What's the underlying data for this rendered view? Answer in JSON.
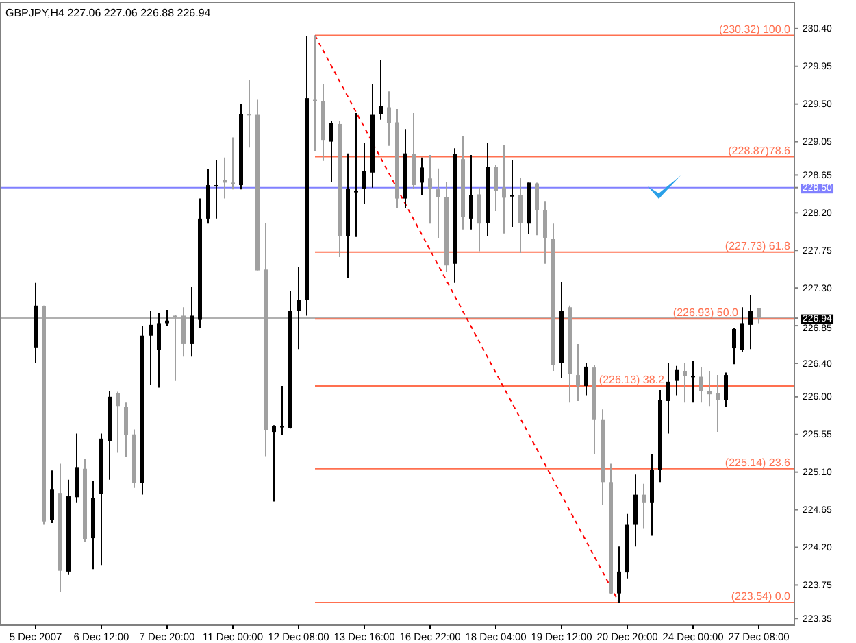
{
  "chart_data": {
    "type": "candlestick",
    "title": "GBPJPY,H4  227.06 227.06 226.88 226.94",
    "categories": [
      "5 Dec 2007",
      null,
      null,
      null,
      null,
      null,
      null,
      null,
      "6 Dec 12:00",
      null,
      null,
      null,
      null,
      null,
      null,
      null,
      "7 Dec 20:00",
      null,
      null,
      null,
      null,
      null,
      null,
      null,
      "11 Dec 00:00",
      null,
      null,
      null,
      null,
      null,
      null,
      null,
      "12 Dec 08:00",
      null,
      null,
      null,
      null,
      null,
      null,
      null,
      "13 Dec 16:00",
      null,
      null,
      null,
      null,
      null,
      null,
      null,
      "16 Dec 22:00",
      null,
      null,
      null,
      null,
      null,
      null,
      null,
      "18 Dec 04:00",
      null,
      null,
      null,
      null,
      null,
      null,
      null,
      "19 Dec 12:00",
      null,
      null,
      null,
      null,
      null,
      null,
      null,
      "20 Dec 20:00",
      null,
      null,
      null,
      null,
      null,
      null,
      null,
      "24 Dec 00:00",
      null,
      null,
      null,
      null,
      null,
      null,
      null,
      "27 Dec 08:00"
    ],
    "ohlc": [
      [
        226.59,
        227.36,
        226.4,
        227.09
      ],
      [
        227.08,
        227.09,
        224.47,
        224.51
      ],
      [
        224.53,
        225.12,
        224.49,
        224.89
      ],
      [
        224.85,
        225.2,
        223.67,
        223.92
      ],
      [
        223.91,
        225.01,
        223.87,
        224.81
      ],
      [
        224.8,
        225.56,
        224.73,
        225.16
      ],
      [
        225.14,
        225.26,
        224.27,
        224.3
      ],
      [
        224.31,
        224.99,
        223.94,
        224.79
      ],
      [
        224.84,
        225.56,
        223.99,
        225.5
      ],
      [
        225.47,
        226.07,
        225.01,
        226.0
      ],
      [
        226.04,
        226.06,
        225.33,
        225.89
      ],
      [
        225.88,
        225.93,
        225.28,
        225.54
      ],
      [
        225.55,
        225.61,
        224.91,
        224.97
      ],
      [
        224.97,
        226.85,
        224.83,
        226.73
      ],
      [
        226.73,
        227.03,
        226.14,
        226.86
      ],
      [
        226.56,
        227.0,
        226.11,
        226.88
      ],
      [
        226.88,
        227.04,
        226.85,
        226.91
      ],
      [
        226.97,
        226.98,
        226.19,
        226.95
      ],
      [
        226.97,
        227.07,
        226.48,
        226.63
      ],
      [
        226.63,
        227.31,
        226.48,
        226.97
      ],
      [
        226.92,
        228.37,
        226.82,
        228.13
      ],
      [
        228.13,
        228.72,
        228.07,
        228.53
      ],
      [
        228.53,
        228.83,
        228.13,
        228.53
      ],
      [
        228.59,
        228.86,
        228.37,
        228.56
      ],
      [
        228.56,
        229.1,
        228.48,
        228.55
      ],
      [
        228.53,
        229.5,
        228.48,
        229.38
      ],
      [
        229.38,
        229.79,
        228.98,
        229.37
      ],
      [
        229.37,
        229.55,
        227.51,
        227.51
      ],
      [
        227.52,
        228.08,
        225.29,
        225.6
      ],
      [
        225.58,
        225.66,
        224.75,
        225.65
      ],
      [
        225.65,
        226.13,
        225.54,
        225.65
      ],
      [
        225.63,
        227.26,
        225.62,
        227.03
      ],
      [
        227.03,
        227.55,
        226.57,
        227.16
      ],
      [
        227.16,
        230.31,
        226.97,
        229.57
      ],
      [
        229.55,
        230.32,
        228.94,
        229.54
      ],
      [
        229.53,
        229.74,
        228.82,
        229.07
      ],
      [
        229.05,
        229.3,
        228.57,
        229.27
      ],
      [
        229.26,
        229.3,
        227.67,
        227.92
      ],
      [
        227.92,
        228.91,
        227.42,
        228.49
      ],
      [
        228.46,
        229.39,
        227.91,
        228.46
      ],
      [
        228.49,
        229.03,
        228.31,
        228.7
      ],
      [
        228.68,
        229.74,
        228.5,
        229.37
      ],
      [
        229.38,
        230.03,
        229.31,
        229.48
      ],
      [
        229.46,
        229.65,
        229.0,
        229.27
      ],
      [
        229.28,
        229.44,
        228.26,
        228.37
      ],
      [
        228.37,
        229.2,
        228.26,
        228.91
      ],
      [
        228.9,
        229.39,
        228.49,
        228.53
      ],
      [
        228.56,
        228.86,
        228.41,
        228.74
      ],
      [
        228.61,
        228.89,
        228.07,
        228.49
      ],
      [
        228.48,
        228.73,
        227.9,
        228.39
      ],
      [
        228.39,
        228.57,
        227.49,
        227.57
      ],
      [
        227.59,
        228.97,
        227.36,
        228.9
      ],
      [
        228.84,
        229.12,
        228.0,
        228.15
      ],
      [
        228.13,
        228.89,
        228.0,
        228.41
      ],
      [
        228.42,
        228.5,
        227.74,
        228.07
      ],
      [
        228.08,
        229.03,
        227.92,
        228.75
      ],
      [
        228.75,
        228.77,
        228.22,
        228.46
      ],
      [
        228.5,
        229.01,
        227.95,
        228.38
      ],
      [
        228.41,
        228.83,
        228.03,
        228.41
      ],
      [
        228.41,
        228.62,
        227.72,
        228.08
      ],
      [
        228.07,
        228.56,
        227.94,
        228.56
      ],
      [
        228.55,
        228.56,
        227.93,
        228.23
      ],
      [
        228.23,
        228.34,
        227.59,
        227.9
      ],
      [
        227.89,
        228.07,
        226.31,
        226.38
      ],
      [
        226.4,
        227.37,
        226.22,
        227.03
      ],
      [
        227.07,
        227.09,
        225.93,
        226.27
      ],
      [
        226.26,
        226.63,
        225.95,
        226.13
      ],
      [
        226.13,
        226.4,
        226.02,
        226.36
      ],
      [
        226.35,
        226.38,
        225.31,
        225.73
      ],
      [
        225.73,
        225.85,
        224.71,
        224.98
      ],
      [
        224.98,
        225.2,
        223.64,
        223.65
      ],
      [
        223.65,
        224.21,
        223.54,
        223.91
      ],
      [
        223.9,
        224.6,
        223.83,
        224.47
      ],
      [
        224.47,
        225.07,
        224.21,
        224.83
      ],
      [
        224.83,
        224.96,
        224.43,
        224.73
      ],
      [
        224.73,
        225.31,
        224.34,
        225.13
      ],
      [
        225.13,
        226.08,
        224.98,
        225.96
      ],
      [
        225.95,
        226.4,
        225.56,
        226.18
      ],
      [
        226.19,
        226.37,
        226.02,
        226.32
      ],
      [
        226.31,
        226.4,
        225.93,
        226.25
      ],
      [
        226.25,
        226.43,
        225.93,
        226.25
      ],
      [
        226.24,
        226.35,
        225.93,
        226.07
      ],
      [
        226.07,
        226.31,
        225.89,
        226.03
      ],
      [
        226.04,
        226.26,
        225.58,
        225.96
      ],
      [
        225.96,
        226.29,
        225.88,
        226.26
      ],
      [
        226.58,
        226.82,
        226.39,
        226.81
      ],
      [
        226.56,
        227.07,
        226.54,
        226.88
      ],
      [
        226.86,
        227.22,
        226.57,
        227.03
      ],
      [
        227.06,
        227.06,
        226.88,
        226.94
      ]
    ],
    "colors": [
      "#000000",
      "#a0a0a0",
      "#000000",
      "#a0a0a0",
      "#000000",
      "#000000",
      "#a0a0a0",
      "#000000",
      "#000000",
      "#000000",
      "#a0a0a0",
      "#a0a0a0",
      "#a0a0a0",
      "#000000",
      "#000000",
      "#000000",
      "#000000",
      "#a0a0a0",
      "#a0a0a0",
      "#000000",
      "#000000",
      "#000000",
      "#000000",
      "#a0a0a0",
      "#a0a0a0",
      "#000000",
      "#a0a0a0",
      "#a0a0a0",
      "#a0a0a0",
      "#000000",
      "#000000",
      "#000000",
      "#000000",
      "#000000",
      "#a0a0a0",
      "#a0a0a0",
      "#000000",
      "#a0a0a0",
      "#000000",
      "#000000",
      "#000000",
      "#000000",
      "#000000",
      "#a0a0a0",
      "#a0a0a0",
      "#000000",
      "#a0a0a0",
      "#000000",
      "#a0a0a0",
      "#a0a0a0",
      "#a0a0a0",
      "#000000",
      "#a0a0a0",
      "#000000",
      "#a0a0a0",
      "#000000",
      "#a0a0a0",
      "#a0a0a0",
      "#000000",
      "#a0a0a0",
      "#000000",
      "#a0a0a0",
      "#a0a0a0",
      "#a0a0a0",
      "#000000",
      "#a0a0a0",
      "#a0a0a0",
      "#000000",
      "#a0a0a0",
      "#a0a0a0",
      "#a0a0a0",
      "#000000",
      "#000000",
      "#000000",
      "#a0a0a0",
      "#000000",
      "#000000",
      "#000000",
      "#000000",
      "#a0a0a0",
      "#000000",
      "#a0a0a0",
      "#a0a0a0",
      "#a0a0a0",
      "#000000",
      "#000000",
      "#000000",
      "#000000",
      "#a0a0a0"
    ],
    "series": [
      {
        "type": "line",
        "color": "#ff0000",
        "line_style": "dashed",
        "values": [
          null,
          null,
          null,
          null,
          null,
          null,
          null,
          null,
          null,
          null,
          null,
          null,
          null,
          null,
          null,
          null,
          null,
          null,
          null,
          null,
          null,
          null,
          null,
          null,
          null,
          null,
          null,
          null,
          null,
          null,
          null,
          null,
          null,
          null,
          230.32,
          null,
          null,
          null,
          null,
          null,
          null,
          null,
          null,
          null,
          null,
          null,
          null,
          null,
          null,
          null,
          null,
          null,
          null,
          null,
          null,
          null,
          null,
          null,
          null,
          null,
          null,
          null,
          null,
          null,
          null,
          null,
          null,
          null,
          null,
          null,
          null,
          223.54,
          null,
          null,
          null,
          null,
          null,
          null,
          null,
          null,
          null,
          null,
          null,
          null,
          null,
          null,
          null,
          null,
          null
        ]
      }
    ],
    "ylim": [
      223.27,
      230.71
    ],
    "yticks": [
      {
        "value": 223.35,
        "label": "223.35"
      },
      {
        "value": 223.75,
        "label": "223.75"
      },
      {
        "value": 224.2,
        "label": "224.20"
      },
      {
        "value": 224.65,
        "label": "224.65"
      },
      {
        "value": 225.1,
        "label": "225.10"
      },
      {
        "value": 225.55,
        "label": "225.55"
      },
      {
        "value": 226.0,
        "label": "226.00"
      },
      {
        "value": 226.4,
        "label": "226.40"
      },
      {
        "value": 226.85,
        "label": "226.85"
      },
      {
        "value": 226.94,
        "label": "226.94"
      },
      {
        "value": 227.3,
        "label": "227.30"
      },
      {
        "value": 227.75,
        "label": "227.75"
      },
      {
        "value": 228.2,
        "label": "228.20"
      },
      {
        "value": 228.5,
        "label": "228.50"
      },
      {
        "value": 228.65,
        "label": "228.65"
      },
      {
        "value": 229.05,
        "label": "229.05"
      },
      {
        "value": 229.5,
        "label": "229.50"
      },
      {
        "value": 229.95,
        "label": "229.95"
      },
      {
        "value": 230.4,
        "label": "230.40"
      }
    ],
    "ref_lines": [
      {
        "axis": "y",
        "value": 230.32,
        "label": "(230.32) 100.0",
        "color": "#ff7050"
      },
      {
        "axis": "y",
        "value": 228.87,
        "label": "(228.87)78.6",
        "color": "#ff7050"
      },
      {
        "axis": "y",
        "value": 227.73,
        "label": "(227.73) 61.8",
        "color": "#ff7050"
      },
      {
        "axis": "y",
        "value": 226.93,
        "label": "(226.93) 50.0",
        "color": "#ff7050"
      },
      {
        "axis": "y",
        "value": 226.13,
        "label": "(226.13) 38.2",
        "color": "#ff7050"
      },
      {
        "axis": "y",
        "value": 225.14,
        "label": "(225.14) 23.6",
        "color": "#ff7050"
      },
      {
        "axis": "y",
        "value": 223.54,
        "label": "(223.54) 0.0",
        "color": "#ff7050"
      },
      {
        "axis": "y",
        "value": 228.5,
        "color": "#8080ff"
      },
      {
        "axis": "y",
        "value": 226.94,
        "color": "#b0b0b0"
      }
    ]
  }
}
